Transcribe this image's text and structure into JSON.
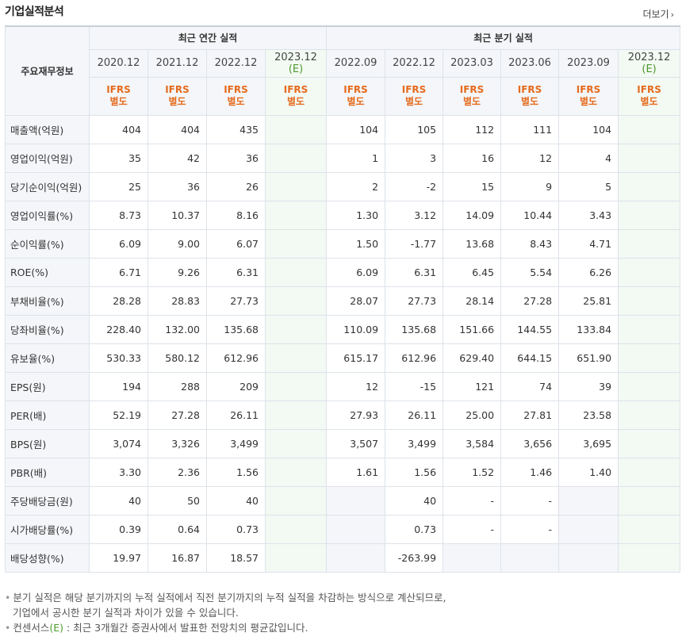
{
  "header": {
    "title": "기업실적분석",
    "more_label": "더보기",
    "more_arrow": "›"
  },
  "table": {
    "row_header_label": "주요재무정보",
    "group_annual": "최근 연간 실적",
    "group_quarter": "최근 분기 실적",
    "periods": [
      {
        "date": "2020.12",
        "estimate": false
      },
      {
        "date": "2021.12",
        "estimate": false
      },
      {
        "date": "2022.12",
        "estimate": false
      },
      {
        "date": "2023.12",
        "est_label": "(E)",
        "estimate": true
      },
      {
        "date": "2022.09",
        "estimate": false
      },
      {
        "date": "2022.12",
        "estimate": false
      },
      {
        "date": "2023.03",
        "estimate": false
      },
      {
        "date": "2023.06",
        "estimate": false
      },
      {
        "date": "2023.09",
        "estimate": false
      },
      {
        "date": "2023.12",
        "est_label": "(E)",
        "estimate": true
      }
    ],
    "ifrs_line1": "IFRS",
    "ifrs_line2": "별도",
    "rows": [
      {
        "label": "매출액(억원)",
        "values": [
          "404",
          "404",
          "435",
          "",
          "104",
          "105",
          "112",
          "111",
          "104",
          ""
        ]
      },
      {
        "label": "영업이익(억원)",
        "values": [
          "35",
          "42",
          "36",
          "",
          "1",
          "3",
          "16",
          "12",
          "4",
          ""
        ]
      },
      {
        "label": "당기순이익(억원)",
        "values": [
          "25",
          "36",
          "26",
          "",
          "2",
          "-2",
          "15",
          "9",
          "5",
          ""
        ]
      },
      {
        "label": "영업이익률(%)",
        "values": [
          "8.73",
          "10.37",
          "8.16",
          "",
          "1.30",
          "3.12",
          "14.09",
          "10.44",
          "3.43",
          ""
        ]
      },
      {
        "label": "순이익률(%)",
        "values": [
          "6.09",
          "9.00",
          "6.07",
          "",
          "1.50",
          "-1.77",
          "13.68",
          "8.43",
          "4.71",
          ""
        ]
      },
      {
        "label": "ROE(%)",
        "values": [
          "6.71",
          "9.26",
          "6.31",
          "",
          "6.09",
          "6.31",
          "6.45",
          "5.54",
          "6.26",
          ""
        ]
      },
      {
        "label": "부채비율(%)",
        "values": [
          "28.28",
          "28.83",
          "27.73",
          "",
          "28.07",
          "27.73",
          "28.14",
          "27.28",
          "25.81",
          ""
        ]
      },
      {
        "label": "당좌비율(%)",
        "values": [
          "228.40",
          "132.00",
          "135.68",
          "",
          "110.09",
          "135.68",
          "151.66",
          "144.55",
          "133.84",
          ""
        ]
      },
      {
        "label": "유보율(%)",
        "values": [
          "530.33",
          "580.12",
          "612.96",
          "",
          "615.17",
          "612.96",
          "629.40",
          "644.15",
          "651.90",
          ""
        ]
      },
      {
        "label": "EPS(원)",
        "values": [
          "194",
          "288",
          "209",
          "",
          "12",
          "-15",
          "121",
          "74",
          "39",
          ""
        ]
      },
      {
        "label": "PER(배)",
        "values": [
          "52.19",
          "27.28",
          "26.11",
          "",
          "27.93",
          "26.11",
          "25.00",
          "27.81",
          "23.58",
          ""
        ]
      },
      {
        "label": "BPS(원)",
        "values": [
          "3,074",
          "3,326",
          "3,499",
          "",
          "3,507",
          "3,499",
          "3,584",
          "3,656",
          "3,695",
          ""
        ]
      },
      {
        "label": "PBR(배)",
        "values": [
          "3.30",
          "2.36",
          "1.56",
          "",
          "1.61",
          "1.56",
          "1.52",
          "1.46",
          "1.40",
          ""
        ]
      },
      {
        "label": "주당배당금(원)",
        "values": [
          "40",
          "50",
          "40",
          "",
          "",
          "40",
          "-",
          "-",
          "",
          ""
        ]
      },
      {
        "label": "시가배당률(%)",
        "values": [
          "0.39",
          "0.64",
          "0.73",
          "",
          "",
          "0.73",
          "-",
          "-",
          "",
          ""
        ]
      },
      {
        "label": "배당성향(%)",
        "values": [
          "19.97",
          "16.87",
          "18.57",
          "",
          "",
          "-263.99",
          "",
          "",
          "",
          ""
        ]
      }
    ],
    "na_cells": [
      [
        13,
        4
      ],
      [
        13,
        8
      ],
      [
        14,
        4
      ],
      [
        14,
        8
      ],
      [
        15,
        4
      ],
      [
        15,
        6
      ],
      [
        15,
        7
      ],
      [
        15,
        8
      ]
    ]
  },
  "notes": {
    "bullet": "•",
    "line1": "분기 실적은 해당 분기까지의 누적 실적에서 직전 분기까지의 누적 실적을 차감하는 방식으로 계산되므로,",
    "line2": "기업에서 공시한 분기 실적과 차이가 있을 수 있습니다.",
    "line3_prefix": "컨센서스",
    "line3_e": "(E)",
    "line3_rest": " : 최근 3개월간 증권사에서 발표한 전망치의 평균값입니다."
  },
  "colors": {
    "ifrs": "#e46b1d",
    "estimate": "#4e9a2c",
    "negative": "#d0001a",
    "estimate_bg": "#f3f9f3",
    "header_bg": "#f4f6f9"
  }
}
